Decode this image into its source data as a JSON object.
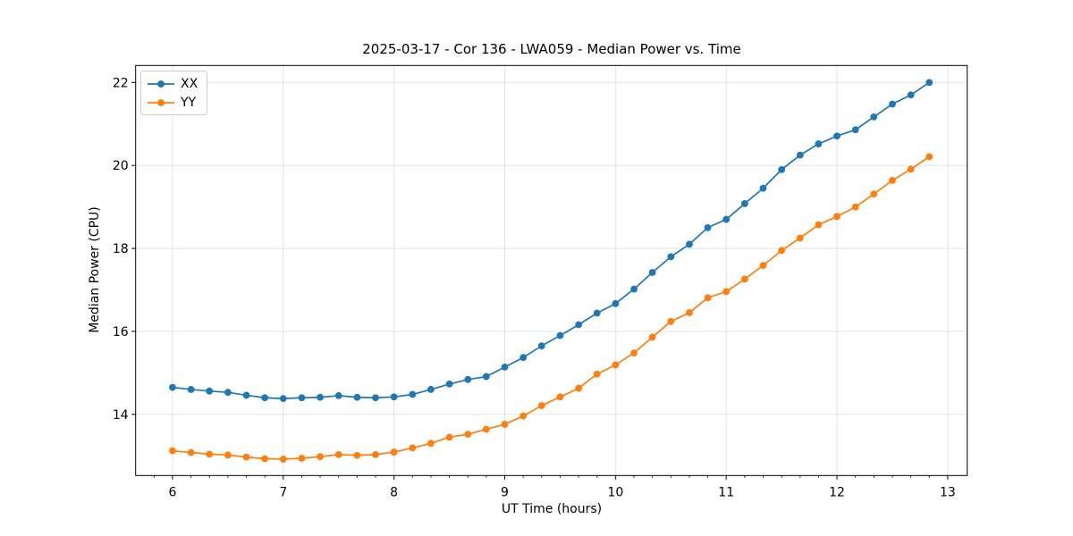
{
  "chart_data": {
    "type": "line",
    "title": "2025-03-17 - Cor 136 - LWA059 - Median Power vs. Time",
    "xlabel": "UT Time (hours)",
    "ylabel": "Median Power (CPU)",
    "xlim": [
      5.667,
      13.176
    ],
    "ylim": [
      12.525,
      22.41
    ],
    "xticks": [
      6,
      7,
      8,
      9,
      10,
      11,
      12,
      13
    ],
    "yticks": [
      14,
      16,
      18,
      20,
      22
    ],
    "x_minor_tick_step": 0.16667,
    "grid": true,
    "legend_position": "upper left",
    "background_color": "#ffffff",
    "grid_color": "#e3e3e3",
    "axis_color": "#000000",
    "x": [
      6.0,
      6.167,
      6.333,
      6.5,
      6.667,
      6.833,
      7.0,
      7.167,
      7.333,
      7.5,
      7.667,
      7.833,
      8.0,
      8.167,
      8.333,
      8.5,
      8.667,
      8.833,
      9.0,
      9.167,
      9.333,
      9.5,
      9.667,
      9.833,
      10.0,
      10.167,
      10.333,
      10.5,
      10.667,
      10.833,
      11.0,
      11.167,
      11.333,
      11.5,
      11.667,
      11.833,
      12.0,
      12.167,
      12.333,
      12.5,
      12.667,
      12.833
    ],
    "series": [
      {
        "name": "XX",
        "color": "#1f77b4",
        "marker": "circle",
        "values": [
          14.65,
          14.6,
          14.56,
          14.53,
          14.46,
          14.4,
          14.38,
          14.4,
          14.41,
          14.45,
          14.41,
          14.4,
          14.42,
          14.48,
          14.6,
          14.73,
          14.84,
          14.91,
          15.14,
          15.37,
          15.65,
          15.9,
          16.16,
          16.44,
          16.67,
          17.02,
          17.42,
          17.8,
          18.1,
          18.5,
          18.7,
          19.08,
          19.45,
          19.9,
          20.25,
          20.52,
          20.71,
          20.86,
          21.17,
          21.48,
          21.7,
          22.0
        ]
      },
      {
        "name": "YY",
        "color": "#ff7f0e",
        "marker": "circle",
        "values": [
          13.12,
          13.08,
          13.04,
          13.02,
          12.97,
          12.93,
          12.92,
          12.94,
          12.98,
          13.03,
          13.01,
          13.03,
          13.09,
          13.19,
          13.3,
          13.45,
          13.52,
          13.64,
          13.76,
          13.96,
          14.21,
          14.42,
          14.63,
          14.97,
          15.19,
          15.48,
          15.86,
          16.24,
          16.45,
          16.81,
          16.96,
          17.26,
          17.59,
          17.95,
          18.25,
          18.57,
          18.77,
          19.0,
          19.31,
          19.64,
          19.91,
          20.21
        ]
      }
    ]
  }
}
